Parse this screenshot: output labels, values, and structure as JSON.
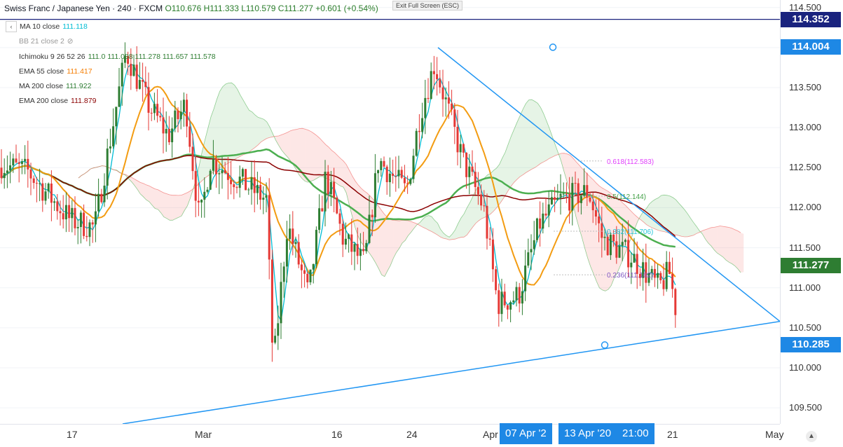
{
  "header": {
    "title": "Swiss Franc / Japanese Yen · 240 · FXCM",
    "ohlc": "O110.676 H111.333 L110.579 C111.277 +0.601 (+0.54%)",
    "exit_full_screen": "Exit Full Screen (ESC)"
  },
  "legend": [
    {
      "label": "MA 10 close",
      "value": "111.118",
      "color": "#00bcd4"
    },
    {
      "label": "BB 21 close 2",
      "value": "",
      "color": "#999999"
    },
    {
      "label": "Ichimoku 9 26 52 26",
      "value": "111.0 111.088 111.278 111.657 111.578",
      "color": "#2e7d32"
    },
    {
      "label": "EMA 55 close",
      "value": "111.417",
      "color": "#f57c00"
    },
    {
      "label": "MA 200 close",
      "value": "111.922",
      "color": "#2e7d32"
    },
    {
      "label": "EMA 200 close",
      "value": "111.879",
      "color": "#8b0000"
    }
  ],
  "colors": {
    "up": "#26a69a",
    "down": "#ef5350",
    "candle_up": "#2e7d32",
    "candle_down": "#e53935",
    "trendline": "#2196f3",
    "fib": "#e040fb",
    "price_badge": "#2e7d32",
    "level_badge": "#1e88e5",
    "top_badge": "#1a237e"
  },
  "chart_data": {
    "type": "candlestick",
    "symbol": "CHFJPY",
    "timeframe": "240",
    "ylim": [
      109.3,
      114.55
    ],
    "y_ticks": [
      "114.500",
      "114.000",
      "113.500",
      "113.000",
      "112.500",
      "112.000",
      "111.500",
      "111.000",
      "110.500",
      "110.000",
      "109.500"
    ],
    "x_ticks": [
      "17",
      "Mar",
      "16",
      "24",
      "Apr",
      "21",
      "May"
    ],
    "price_labels": [
      {
        "text": "114.352",
        "value": 114.352,
        "color": "#1a237e"
      },
      {
        "text": "114.004",
        "value": 114.004,
        "color": "#1e88e5"
      },
      {
        "text": "111.277",
        "value": 111.277,
        "color": "#2e7d32"
      },
      {
        "text": "110.285",
        "value": 110.285,
        "color": "#1e88e5"
      }
    ],
    "time_labels": [
      "07 Apr '2",
      "13 Apr '20",
      "21:00"
    ],
    "fib_labels": [
      "0.618(112.583)",
      "0.5(112.144)",
      "0.382(111.706)",
      "0.236(111.162)"
    ],
    "fib_levels": [
      112.583,
      112.144,
      111.706,
      111.162
    ],
    "horizontal_line": 114.352,
    "trendline_upper": {
      "from": [
        625,
        114.0
      ],
      "to": [
        1113,
        110.58
      ]
    },
    "trendline_lower": {
      "from": [
        175,
        109.3
      ],
      "to": [
        1113,
        110.58
      ]
    },
    "close": 111.277
  }
}
